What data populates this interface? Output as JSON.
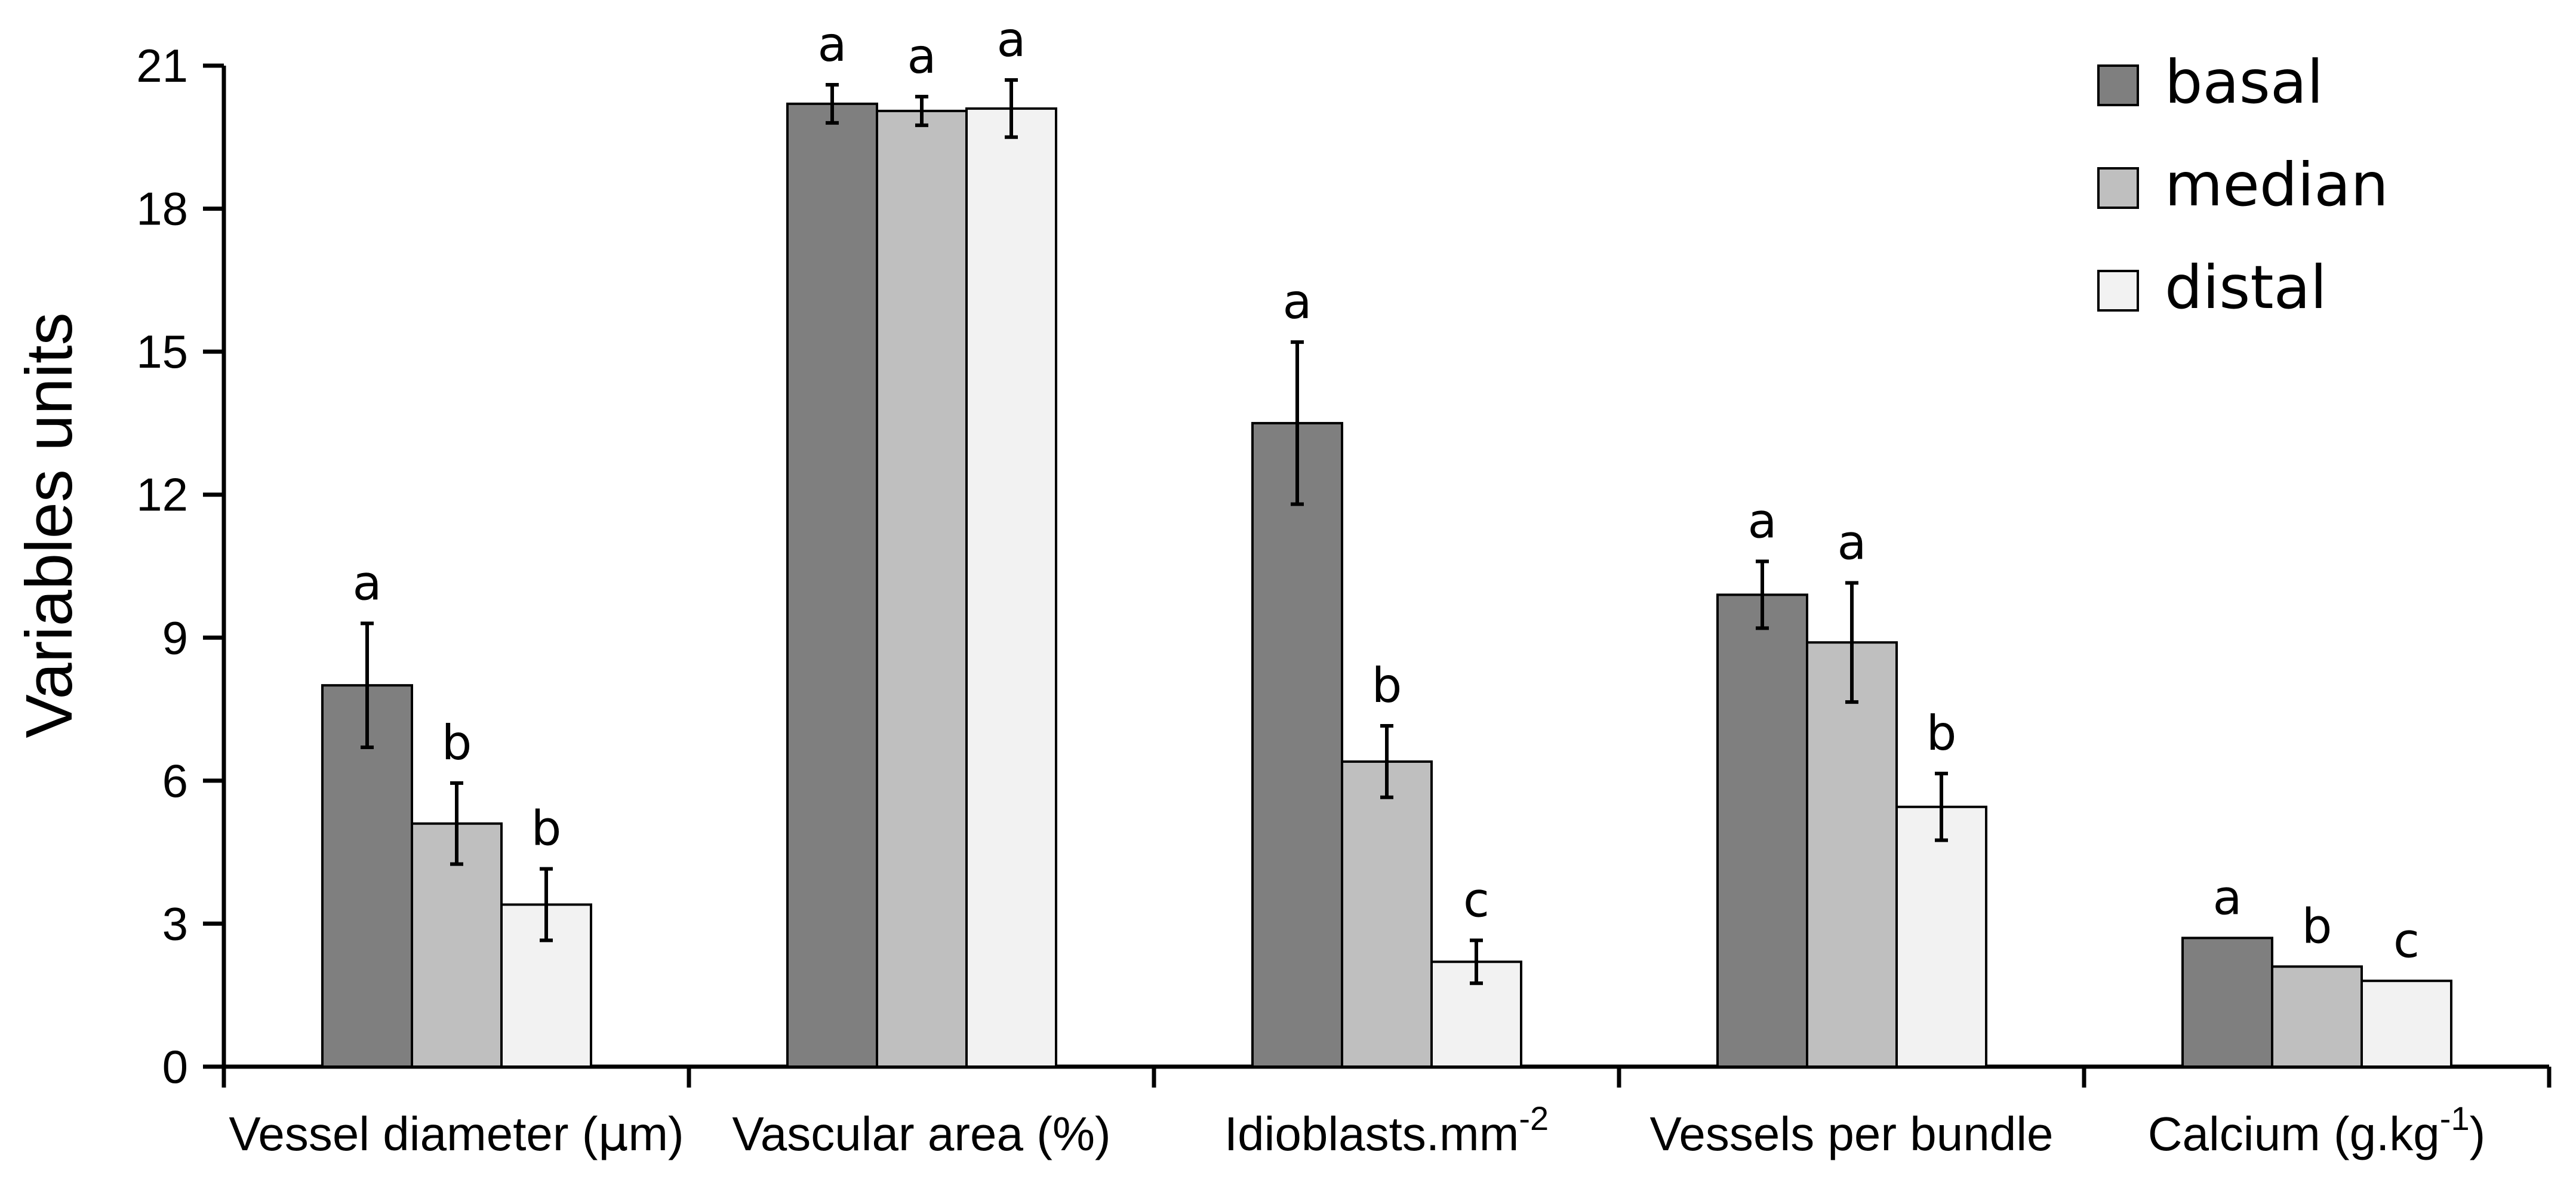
{
  "chart_data": {
    "type": "bar",
    "ylabel": "Variables units",
    "ylim": [
      0,
      21
    ],
    "yticks": [
      "0",
      "3",
      "6",
      "9",
      "12",
      "15",
      "18",
      "21"
    ],
    "categories": [
      {
        "label": "Vessel diameter (",
        "mu": "μ",
        "rest": "m)"
      },
      {
        "label": "Vascular area (%)"
      },
      {
        "label": "Idioblasts.mm",
        "sup": "-2"
      },
      {
        "label": "Vessels per bundle"
      },
      {
        "label": "Calcium (g.kg",
        "sup": "-1",
        "tail": ")"
      }
    ],
    "series": [
      {
        "name": "basal",
        "color": "#7f7f7f",
        "values": [
          8.0,
          20.2,
          13.5,
          9.9,
          2.7
        ],
        "errors": [
          1.3,
          0.4,
          1.7,
          0.7,
          0
        ],
        "letters": [
          "a",
          "a",
          "a",
          "a",
          "a"
        ]
      },
      {
        "name": "median",
        "color": "#bfbfbf",
        "values": [
          5.1,
          20.05,
          6.4,
          8.9,
          2.1
        ],
        "errors": [
          0.85,
          0.3,
          0.75,
          1.25,
          0
        ],
        "letters": [
          "b",
          "a",
          "b",
          "a",
          "b"
        ]
      },
      {
        "name": "distal",
        "color": "#f2f2f2",
        "values": [
          3.4,
          20.1,
          2.2,
          5.45,
          1.8
        ],
        "errors": [
          0.75,
          0.6,
          0.45,
          0.7,
          0
        ],
        "letters": [
          "b",
          "a",
          "c",
          "b",
          "c"
        ]
      }
    ],
    "legend": {
      "position": "top-right",
      "entries": [
        "basal",
        "median",
        "distal"
      ]
    }
  }
}
